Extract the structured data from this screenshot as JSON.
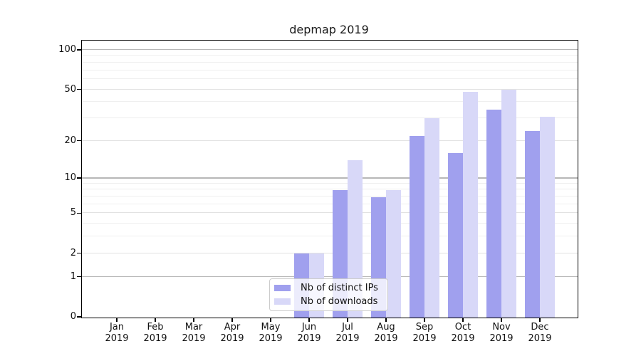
{
  "title": "depmap 2019",
  "chart_data": {
    "type": "bar",
    "title": "depmap 2019",
    "categories": [
      "Jan",
      "Feb",
      "Mar",
      "Apr",
      "May",
      "Jun",
      "Jul",
      "Aug",
      "Sep",
      "Oct",
      "Nov",
      "Dec"
    ],
    "year": "2019",
    "series": [
      {
        "name": "Nb of distinct IPs",
        "color": "#a0a0ee",
        "values": [
          0,
          0,
          0,
          0,
          0,
          2,
          8,
          7,
          22,
          16,
          35,
          24
        ]
      },
      {
        "name": "Nb of downloads",
        "color": "#d8d8f8",
        "values": [
          0,
          0,
          0,
          0,
          0,
          2,
          14,
          8,
          30,
          48,
          50,
          31
        ]
      }
    ],
    "yscale": "symlog",
    "ylim": [
      0,
      117.5
    ],
    "y_tick_labels": [
      0,
      1,
      2,
      5,
      10,
      20,
      50,
      100
    ],
    "y_major_gridlines": [
      1,
      10,
      100
    ],
    "y_mid_gridlines": [
      2,
      5,
      20,
      50
    ],
    "y_minor_gridlines": [
      3,
      4,
      6,
      7,
      8,
      9,
      30,
      40,
      60,
      70,
      80,
      90
    ],
    "grid": "on",
    "legend_position": "bottom-center"
  }
}
